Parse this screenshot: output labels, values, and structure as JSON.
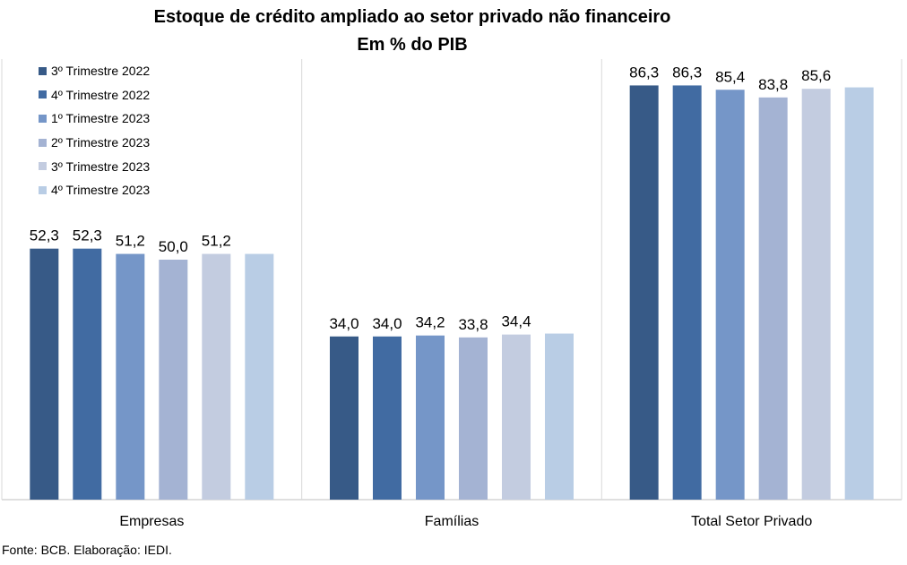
{
  "chart_data": {
    "type": "bar",
    "title": "Estoque de crédito ampliado ao setor privado não financeiro",
    "subtitle": "Em % do PIB",
    "categories": [
      "Empresas",
      "Famílias",
      "Total Setor Privado"
    ],
    "series": [
      {
        "name": "3º Trimestre 2022",
        "values": [
          52.3,
          34.0,
          86.3
        ],
        "labels": [
          "52,3",
          "34,0",
          "86,3"
        ],
        "color": "#375A87"
      },
      {
        "name": "4º Trimestre 2022",
        "values": [
          52.3,
          34.0,
          86.3
        ],
        "labels": [
          "52,3",
          "34,0",
          "86,3"
        ],
        "color": "#416BA2"
      },
      {
        "name": "1º Trimestre 2023",
        "values": [
          51.2,
          34.2,
          85.4
        ],
        "labels": [
          "51,2",
          "34,2",
          "85,4"
        ],
        "color": "#7596C8"
      },
      {
        "name": "2º Trimestre 2023",
        "values": [
          50.0,
          33.8,
          83.8
        ],
        "labels": [
          "50,0",
          "33,8",
          "83,8"
        ],
        "color": "#A4B3D3"
      },
      {
        "name": "3º Trimestre 2023",
        "values": [
          51.2,
          34.4,
          85.6
        ],
        "labels": [
          "51,2",
          "34,4",
          "85,6"
        ],
        "color": "#C3CCE0"
      },
      {
        "name": "4º Trimestre 2023",
        "values": [
          51.2,
          34.6,
          85.9
        ],
        "labels": [
          "",
          "",
          ""
        ],
        "color": "#B9CDE5"
      }
    ],
    "ylim": [
      0,
      100
    ],
    "grid": false,
    "legend_position": "top-left"
  },
  "source": "Fonte: BCB. Elaboração: IEDI."
}
